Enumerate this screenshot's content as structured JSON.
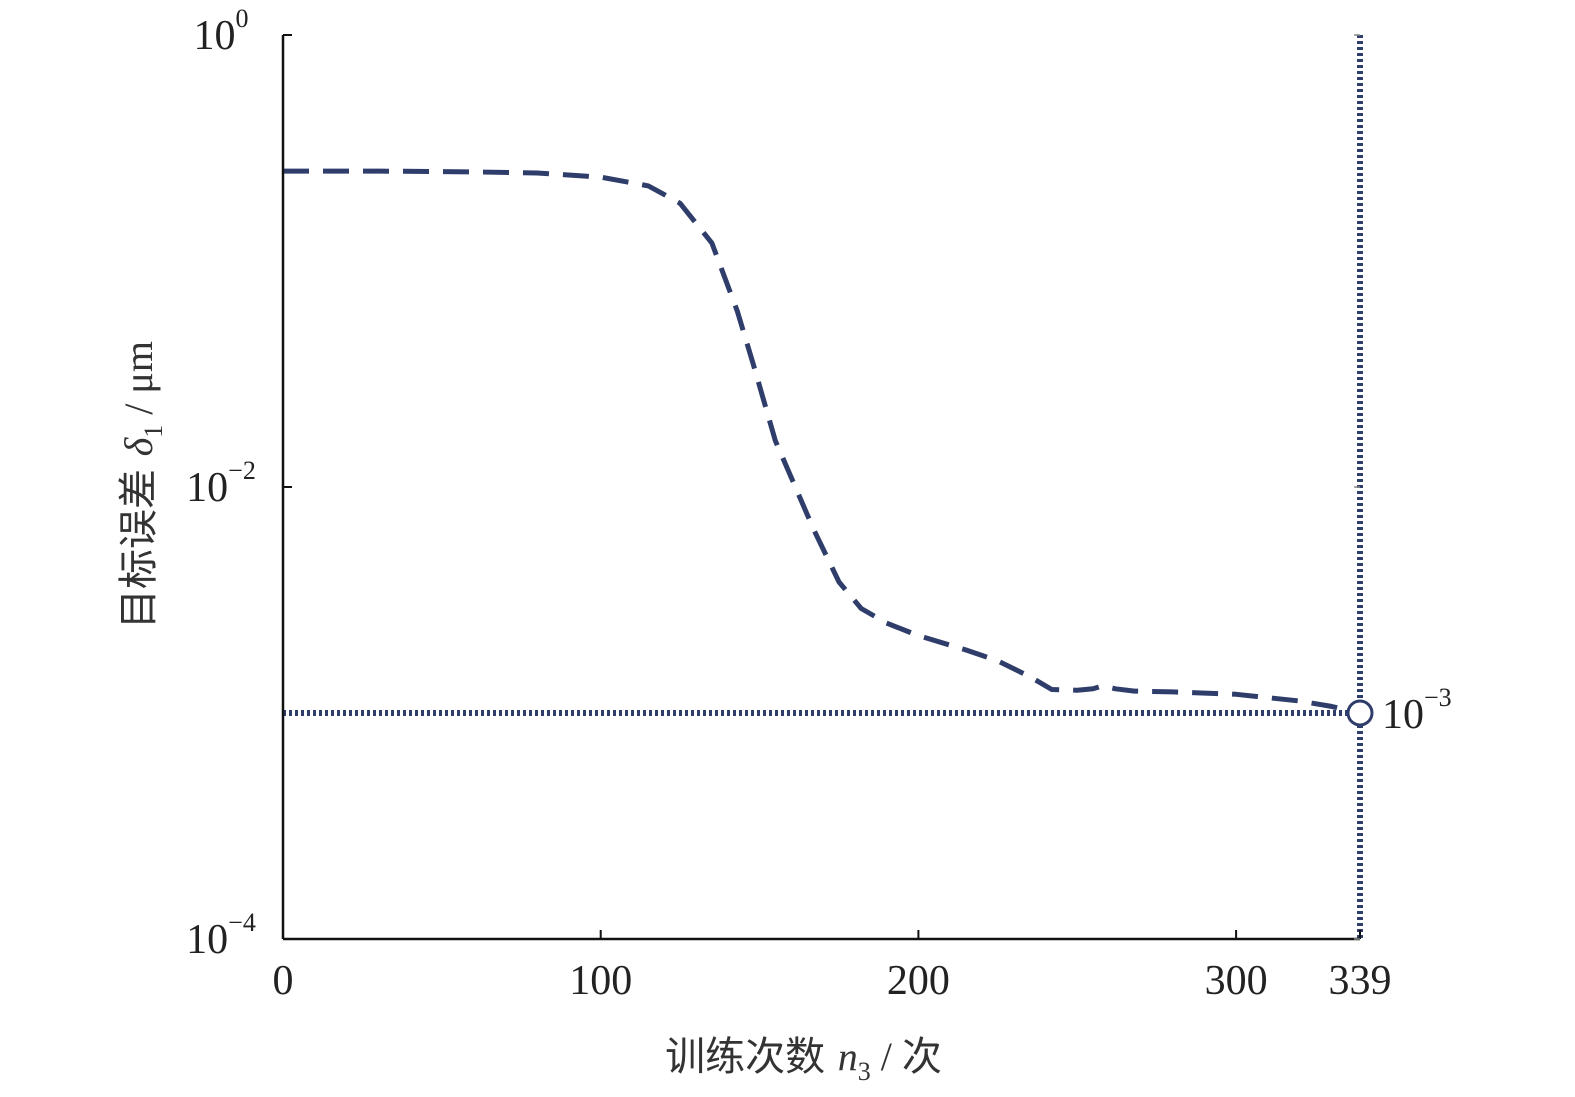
{
  "chart_data": {
    "type": "line",
    "xlabel": {
      "text": "训练次数",
      "var": "n",
      "sub": "3",
      "unit": " / 次"
    },
    "ylabel": {
      "text": "目标误差",
      "var": "δ",
      "sub": "1",
      "unit": " / μm"
    },
    "xlim": [
      0,
      339
    ],
    "ylim": [
      0.0001,
      1
    ],
    "yscale": "log",
    "x_ticks": [
      {
        "value": 0,
        "label": "0"
      },
      {
        "value": 100,
        "label": "100"
      },
      {
        "value": 200,
        "label": "200"
      },
      {
        "value": 300,
        "label": "300"
      },
      {
        "value": 339,
        "label": "339"
      }
    ],
    "y_ticks": [
      {
        "value": 1,
        "base": "10",
        "exp": "0"
      },
      {
        "value": 0.01,
        "base": "10",
        "exp": "−2"
      },
      {
        "value": 0.0001,
        "base": "10",
        "exp": "−4"
      }
    ],
    "grid": false,
    "series": [
      {
        "style": "dashed",
        "color": "#2f3d6b",
        "points": [
          [
            0,
            0.25
          ],
          [
            30,
            0.25
          ],
          [
            60,
            0.248
          ],
          [
            80,
            0.245
          ],
          [
            100,
            0.235
          ],
          [
            115,
            0.215
          ],
          [
            125,
            0.18
          ],
          [
            135,
            0.12
          ],
          [
            143,
            0.06
          ],
          [
            148,
            0.035
          ],
          [
            155,
            0.016
          ],
          [
            160,
            0.011
          ],
          [
            167,
            0.0065
          ],
          [
            175,
            0.0038
          ],
          [
            182,
            0.0029
          ],
          [
            190,
            0.0025
          ],
          [
            200,
            0.0022
          ],
          [
            215,
            0.0019
          ],
          [
            225,
            0.0017
          ],
          [
            235,
            0.00145
          ],
          [
            242,
            0.00127
          ],
          [
            250,
            0.00126
          ],
          [
            255,
            0.00128
          ],
          [
            258,
            0.00132
          ],
          [
            262,
            0.00128
          ],
          [
            268,
            0.00125
          ],
          [
            280,
            0.00124
          ],
          [
            300,
            0.00121
          ],
          [
            320,
            0.00113
          ],
          [
            330,
            0.00107
          ],
          [
            339,
            0.001
          ]
        ]
      }
    ],
    "reference_lines": [
      {
        "orientation": "horizontal",
        "value": 0.001,
        "style": "dotted",
        "color": "#2f3d6b"
      },
      {
        "orientation": "vertical",
        "value": 339,
        "style": "dotted",
        "color": "#2f3d6b"
      }
    ],
    "goal_marker": {
      "x": 339,
      "y": 0.001,
      "base": "10",
      "exp": "−3",
      "color": "#2f3d6b"
    }
  }
}
